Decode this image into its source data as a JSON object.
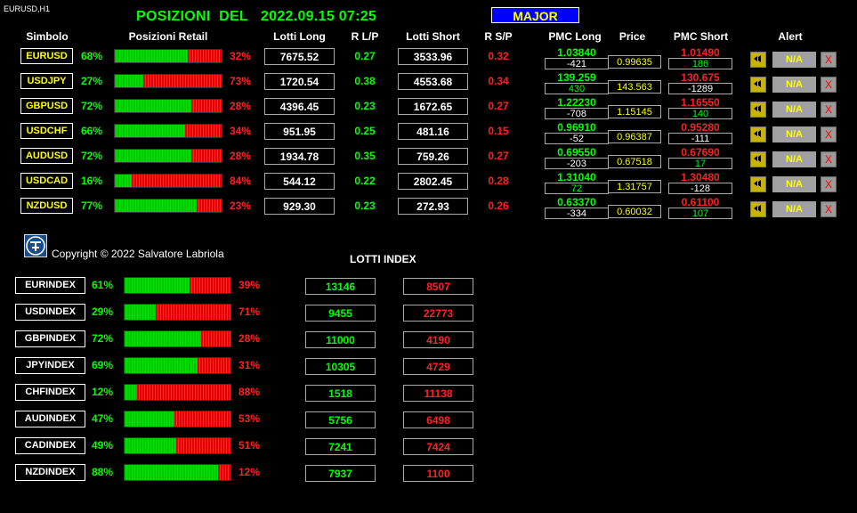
{
  "symbol_label": "EURUSD,H1",
  "title": "POSIZIONI  DEL   2022.09.15 07:25",
  "major_button": "MAJOR",
  "headers": {
    "simbolo": "Simbolo",
    "posizioni_retail": "Posizioni Retail",
    "lotti_long": "Lotti Long",
    "r_lp": "R L/P",
    "lotti_short": "Lotti Short",
    "r_sp": "R S/P",
    "pmc_long": "PMC Long",
    "price": "Price",
    "pmc_short": "PMC Short",
    "alert": "Alert"
  },
  "pairs": [
    {
      "symbol": "EURUSD",
      "long_pct": "68%",
      "long_fraction": 0.68,
      "short_pct": "32%",
      "lotti_long": "7675.52",
      "r_lp": "0.27",
      "lotti_short": "3533.96",
      "r_sp": "0.32",
      "pmc_long": "1.03840",
      "pmc_long_diff": "-421",
      "pmc_long_diff_color": "#ffffff",
      "price": "0.99635",
      "pmc_short": "1.01490",
      "pmc_short_diff": "186",
      "pmc_short_diff_color": "#00ff00",
      "alert": "N/A",
      "close": "X"
    },
    {
      "symbol": "USDJPY",
      "long_pct": "27%",
      "long_fraction": 0.27,
      "short_pct": "73%",
      "lotti_long": "1720.54",
      "r_lp": "0.38",
      "lotti_short": "4553.68",
      "r_sp": "0.34",
      "pmc_long": "139.259",
      "pmc_long_diff": "430",
      "pmc_long_diff_color": "#00ff00",
      "price": "143.563",
      "pmc_short": "130.675",
      "pmc_short_diff": "-1289",
      "pmc_short_diff_color": "#ffffff",
      "alert": "N/A",
      "close": "X"
    },
    {
      "symbol": "GBPUSD",
      "long_pct": "72%",
      "long_fraction": 0.72,
      "short_pct": "28%",
      "lotti_long": "4396.45",
      "r_lp": "0.23",
      "lotti_short": "1672.65",
      "r_sp": "0.27",
      "pmc_long": "1.22230",
      "pmc_long_diff": "-708",
      "pmc_long_diff_color": "#ffffff",
      "price": "1.15145",
      "pmc_short": "1.16550",
      "pmc_short_diff": "140",
      "pmc_short_diff_color": "#00ff00",
      "alert": "N/A",
      "close": "X"
    },
    {
      "symbol": "USDCHF",
      "long_pct": "66%",
      "long_fraction": 0.66,
      "short_pct": "34%",
      "lotti_long": "951.95",
      "r_lp": "0.25",
      "lotti_short": "481.16",
      "r_sp": "0.15",
      "pmc_long": "0.96910",
      "pmc_long_diff": "-52",
      "pmc_long_diff_color": "#ffffff",
      "price": "0.96387",
      "pmc_short": "0.95280",
      "pmc_short_diff": "-111",
      "pmc_short_diff_color": "#ffffff",
      "alert": "N/A",
      "close": "X"
    },
    {
      "symbol": "AUDUSD",
      "long_pct": "72%",
      "long_fraction": 0.72,
      "short_pct": "28%",
      "lotti_long": "1934.78",
      "r_lp": "0.35",
      "lotti_short": "759.26",
      "r_sp": "0.27",
      "pmc_long": "0.69550",
      "pmc_long_diff": "-203",
      "pmc_long_diff_color": "#ffffff",
      "price": "0.67518",
      "pmc_short": "0.67690",
      "pmc_short_diff": "17",
      "pmc_short_diff_color": "#00ff00",
      "alert": "N/A",
      "close": "X"
    },
    {
      "symbol": "USDCAD",
      "long_pct": "16%",
      "long_fraction": 0.16,
      "short_pct": "84%",
      "lotti_long": "544.12",
      "r_lp": "0.22",
      "lotti_short": "2802.45",
      "r_sp": "0.28",
      "pmc_long": "1.31040",
      "pmc_long_diff": "72",
      "pmc_long_diff_color": "#00ff00",
      "price": "1.31757",
      "pmc_short": "1.30480",
      "pmc_short_diff": "-128",
      "pmc_short_diff_color": "#ffffff",
      "alert": "N/A",
      "close": "X"
    },
    {
      "symbol": "NZDUSD",
      "long_pct": "77%",
      "long_fraction": 0.77,
      "short_pct": "23%",
      "lotti_long": "929.30",
      "r_lp": "0.23",
      "lotti_short": "272.93",
      "r_sp": "0.26",
      "pmc_long": "0.63370",
      "pmc_long_diff": "-334",
      "pmc_long_diff_color": "#ffffff",
      "price": "0.60032",
      "pmc_short": "0.61100",
      "pmc_short_diff": "107",
      "pmc_short_diff_color": "#00ff00",
      "alert": "N/A",
      "close": "X"
    }
  ],
  "copyright": "Copyright © 2022 Salvatore Labriola",
  "lotti_index_title": "LOTTI INDEX",
  "indices": [
    {
      "name": "EURINDEX",
      "long_pct": "61%",
      "long_fraction": 0.61,
      "short_pct": "39%",
      "long_lots": "13146",
      "short_lots": "8507"
    },
    {
      "name": "USDINDEX",
      "long_pct": "29%",
      "long_fraction": 0.29,
      "short_pct": "71%",
      "long_lots": "9455",
      "short_lots": "22773"
    },
    {
      "name": "GBPINDEX",
      "long_pct": "72%",
      "long_fraction": 0.72,
      "short_pct": "28%",
      "long_lots": "11000",
      "short_lots": "4190"
    },
    {
      "name": "JPYINDEX",
      "long_pct": "69%",
      "long_fraction": 0.69,
      "short_pct": "31%",
      "long_lots": "10305",
      "short_lots": "4729"
    },
    {
      "name": "CHFINDEX",
      "long_pct": "12%",
      "long_fraction": 0.12,
      "short_pct": "88%",
      "long_lots": "1518",
      "short_lots": "11138"
    },
    {
      "name": "AUDINDEX",
      "long_pct": "47%",
      "long_fraction": 0.47,
      "short_pct": "53%",
      "long_lots": "5756",
      "short_lots": "6498"
    },
    {
      "name": "CADINDEX",
      "long_pct": "49%",
      "long_fraction": 0.49,
      "short_pct": "51%",
      "long_lots": "7241",
      "short_lots": "7424"
    },
    {
      "name": "NZDINDEX",
      "long_pct": "88%",
      "long_fraction": 0.88,
      "short_pct": "12%",
      "long_lots": "7937",
      "short_lots": "1100"
    }
  ],
  "colors": {
    "long": "#00ff00",
    "short": "#ff2020",
    "symbol_text": "#ffff00",
    "major_bg": "#0000ff",
    "alert_bell": "#c8b400"
  }
}
